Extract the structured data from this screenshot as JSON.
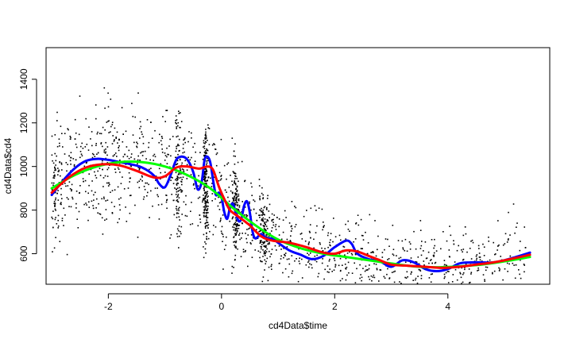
{
  "chart_data": {
    "type": "scatter",
    "title": "",
    "xlabel": "cd4Data$time",
    "ylabel": "cd4Data$cd4",
    "xlim": [
      -3.1,
      5.8
    ],
    "ylim": [
      460,
      1545
    ],
    "xticks": [
      -2,
      0,
      2,
      4
    ],
    "xtick_labels": [
      "-2",
      "0",
      "2",
      "4"
    ],
    "yticks": [
      600,
      800,
      1000,
      1200,
      1400
    ],
    "ytick_labels": [
      "600",
      "800",
      "1000",
      "1200",
      "1400"
    ],
    "grid": false,
    "legend": "none",
    "scatter_series": {
      "name": "",
      "color": "#000000",
      "description_only": false,
      "approx_point_count": 2000
    },
    "series": [
      {
        "name": "",
        "color": "#0000ff",
        "x": [
          -3.0,
          -2.8,
          -2.6,
          -2.4,
          -2.2,
          -2.0,
          -1.8,
          -1.6,
          -1.4,
          -1.2,
          -1.1,
          -1.0,
          -0.9,
          -0.8,
          -0.7,
          -0.6,
          -0.5,
          -0.42,
          -0.35,
          -0.3,
          -0.25,
          -0.2,
          -0.15,
          -0.1,
          -0.05,
          0.0,
          0.05,
          0.1,
          0.15,
          0.2,
          0.25,
          0.3,
          0.35,
          0.4,
          0.45,
          0.5,
          0.55,
          0.6,
          0.7,
          0.8,
          0.9,
          1.0,
          1.2,
          1.4,
          1.6,
          1.8,
          2.0,
          2.2,
          2.3,
          2.4,
          2.6,
          2.8,
          3.0,
          3.2,
          3.4,
          3.6,
          3.8,
          4.0,
          4.2,
          4.4,
          4.6,
          4.8,
          5.0,
          5.2,
          5.45
        ],
        "y": [
          870,
          935,
          990,
          1025,
          1035,
          1030,
          1020,
          1010,
          995,
          960,
          920,
          905,
          960,
          1030,
          1045,
          1030,
          975,
          895,
          930,
          1030,
          1045,
          1020,
          940,
          870,
          880,
          860,
          790,
          760,
          810,
          830,
          790,
          750,
          760,
          820,
          840,
          790,
          700,
          670,
          690,
          670,
          670,
          650,
          615,
          595,
          575,
          590,
          630,
          660,
          645,
          600,
          575,
          565,
          540,
          570,
          560,
          530,
          520,
          530,
          555,
          560,
          560,
          560,
          570,
          585,
          605
        ]
      },
      {
        "name": "",
        "color": "#ff0000",
        "x": [
          -3.0,
          -2.7,
          -2.4,
          -2.1,
          -1.8,
          -1.5,
          -1.2,
          -1.0,
          -0.8,
          -0.6,
          -0.4,
          -0.25,
          -0.15,
          -0.05,
          0.05,
          0.15,
          0.3,
          0.5,
          0.7,
          0.9,
          1.2,
          1.5,
          1.8,
          2.0,
          2.2,
          2.4,
          2.6,
          2.8,
          3.0,
          3.3,
          3.6,
          3.9,
          4.2,
          4.5,
          4.8,
          5.1,
          5.45
        ],
        "y": [
          880,
          950,
          995,
          1010,
          1005,
          980,
          950,
          955,
          995,
          1000,
          990,
          1000,
          985,
          910,
          850,
          800,
          770,
          730,
          680,
          660,
          650,
          630,
          605,
          600,
          615,
          610,
          590,
          570,
          550,
          545,
          540,
          535,
          540,
          550,
          560,
          575,
          595
        ]
      },
      {
        "name": "",
        "color": "#00ff00",
        "x": [
          -3.0,
          -2.6,
          -2.2,
          -1.8,
          -1.4,
          -1.0,
          -0.6,
          -0.2,
          0.2,
          0.6,
          1.0,
          1.4,
          1.8,
          2.2,
          2.6,
          3.0,
          3.4,
          3.8,
          4.2,
          4.6,
          5.0,
          5.45
        ],
        "y": [
          900,
          960,
          1000,
          1020,
          1020,
          1000,
          960,
          900,
          810,
          730,
          665,
          625,
          600,
          585,
          570,
          555,
          542,
          538,
          542,
          550,
          565,
          585
        ]
      }
    ]
  }
}
